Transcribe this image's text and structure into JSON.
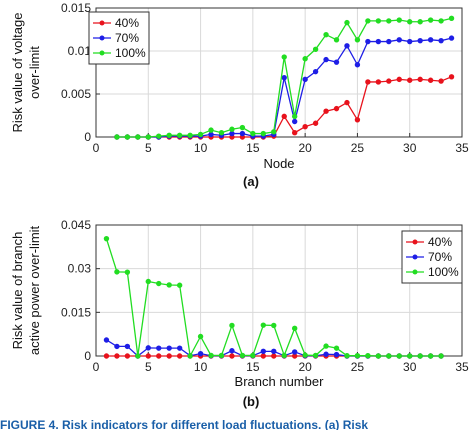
{
  "caption": "FIGURE 4. Risk indicators for different load fluctuations. (a) Risk",
  "chart_data": [
    {
      "type": "line",
      "panel_label": "(a)",
      "xlabel": "Node",
      "ylabel": [
        "Risk value of voltage",
        "over-limit"
      ],
      "xlim": [
        0,
        35
      ],
      "ylim": [
        0,
        0.015
      ],
      "xticks": [
        0,
        5,
        10,
        15,
        20,
        25,
        30,
        35
      ],
      "xtick_labels": [
        "0",
        "5",
        "10",
        "15",
        "20",
        "25",
        "30",
        "35"
      ],
      "yticks": [
        0,
        0.005,
        0.01,
        0.015
      ],
      "ytick_labels": [
        "0",
        "0.005",
        "0.01",
        "0.015"
      ],
      "grid": true,
      "legend_position": "top-left",
      "x": [
        2,
        3,
        4,
        5,
        6,
        7,
        8,
        9,
        10,
        11,
        12,
        13,
        14,
        15,
        16,
        17,
        18,
        19,
        20,
        21,
        22,
        23,
        24,
        25,
        26,
        27,
        28,
        29,
        30,
        31,
        32,
        33,
        34
      ],
      "series": [
        {
          "name": "40%",
          "color": "#e8121c",
          "values": [
            0,
            0,
            0,
            0,
            0,
            0,
            0,
            0,
            0,
            0,
            0,
            0,
            0,
            0,
            0,
            0.0001,
            0.0024,
            0.0005,
            0.0012,
            0.0016,
            0.003,
            0.0033,
            0.004,
            0.002,
            0.0064,
            0.0064,
            0.0065,
            0.0067,
            0.0066,
            0.0067,
            0.0066,
            0.0065,
            0.007
          ]
        },
        {
          "name": "70%",
          "color": "#1e1ee6",
          "values": [
            0,
            0,
            0,
            0,
            0,
            0.0001,
            0.0001,
            0.0001,
            0.0001,
            0.0003,
            0.0002,
            0.0004,
            0.0004,
            0.0001,
            0.0001,
            0.0003,
            0.0069,
            0.0018,
            0.0067,
            0.0076,
            0.009,
            0.0087,
            0.0106,
            0.0084,
            0.0111,
            0.0111,
            0.0111,
            0.0113,
            0.0111,
            0.0112,
            0.0113,
            0.0112,
            0.0115
          ]
        },
        {
          "name": "100%",
          "color": "#22dd22",
          "values": [
            0,
            0,
            0,
            0,
            0.0001,
            0.0002,
            0.0002,
            0.0002,
            0.0003,
            0.0008,
            0.0005,
            0.0009,
            0.0011,
            0.0004,
            0.0004,
            0.0006,
            0.0093,
            0.0024,
            0.0091,
            0.0102,
            0.0119,
            0.0113,
            0.0133,
            0.0113,
            0.0135,
            0.0135,
            0.0135,
            0.0136,
            0.0134,
            0.0134,
            0.0136,
            0.0135,
            0.0138
          ]
        }
      ]
    },
    {
      "type": "line",
      "panel_label": "(b)",
      "xlabel": "Branch number",
      "ylabel": [
        "Risk value of branch",
        "active power over-limit"
      ],
      "xlim": [
        0,
        35
      ],
      "ylim": [
        0,
        0.045
      ],
      "xticks": [
        0,
        5,
        10,
        15,
        20,
        25,
        30,
        35
      ],
      "xtick_labels": [
        "0",
        "5",
        "10",
        "15",
        "20",
        "25",
        "30",
        "35"
      ],
      "yticks": [
        0,
        0.015,
        0.03,
        0.045
      ],
      "ytick_labels": [
        "0",
        "0.015",
        "0.03",
        "0.045"
      ],
      "grid": true,
      "legend_position": "top-right",
      "x": [
        1,
        2,
        3,
        4,
        5,
        6,
        7,
        8,
        9,
        10,
        11,
        12,
        13,
        14,
        15,
        16,
        17,
        18,
        19,
        20,
        21,
        22,
        23,
        24,
        25,
        26,
        27,
        28,
        29,
        30,
        31,
        32,
        33
      ],
      "series": [
        {
          "name": "40%",
          "color": "#e8121c",
          "values": [
            0,
            0,
            0,
            0,
            0,
            0,
            0,
            0,
            0,
            0,
            0,
            0,
            0,
            0,
            0,
            0,
            0,
            0,
            0,
            0,
            0,
            0,
            0,
            0,
            0,
            0,
            0,
            0,
            0,
            0,
            0,
            0,
            0
          ]
        },
        {
          "name": "70%",
          "color": "#1e1ee6",
          "values": [
            0.0055,
            0.0033,
            0.0033,
            0,
            0.0028,
            0.0027,
            0.0027,
            0.0027,
            0.0001,
            0.0008,
            0.0001,
            0.0001,
            0.0018,
            0.0001,
            0.0001,
            0.0016,
            0.0016,
            0.0001,
            0.0014,
            0.0001,
            0.0001,
            0.0006,
            0.0005,
            0,
            0,
            0,
            0,
            0,
            0,
            0,
            0,
            0,
            0
          ]
        },
        {
          "name": "100%",
          "color": "#22dd22",
          "values": [
            0.0403,
            0.0289,
            0.0288,
            0,
            0.0256,
            0.0249,
            0.0244,
            0.0243,
            0,
            0.0067,
            0.0002,
            0.0002,
            0.0105,
            0.0002,
            0.0002,
            0.0106,
            0.0105,
            0.0002,
            0.0095,
            0.0003,
            0.0002,
            0.0034,
            0.0027,
            0.0001,
            0.0001,
            0.0001,
            0,
            0,
            0,
            0,
            0,
            0,
            0
          ]
        }
      ]
    }
  ]
}
